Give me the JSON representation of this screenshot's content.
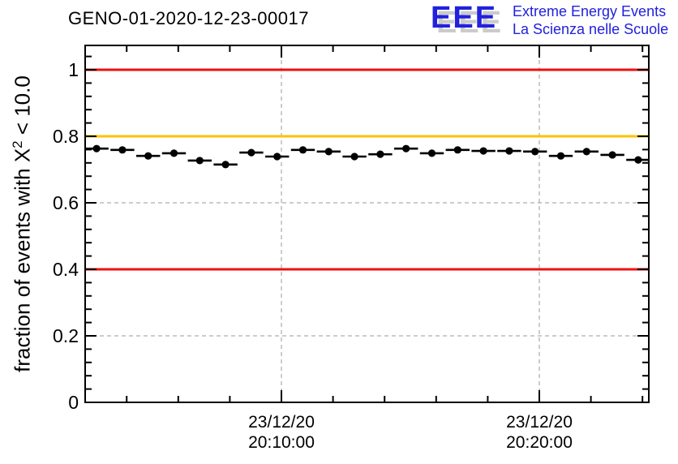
{
  "header": {
    "title": "GENO-01-2020-12-23-00017",
    "logo": {
      "monogram": "EEE",
      "line1": "Extreme Energy Events",
      "line2": "La Scienza nelle Scuole",
      "color": "#2121dd",
      "shadow_color": "#cbcbcb"
    }
  },
  "chart_data": {
    "type": "scatter",
    "title": "GENO-01-2020-12-23-00017",
    "ylabel_prefix": "fraction of events with X",
    "ylabel_sup": "2",
    "ylabel_suffix": " < 10.0",
    "xlabel": "",
    "ylim": [
      0,
      1.073
    ],
    "grid": "dashed-gray",
    "grid_color": "#9a9a9a",
    "frame_color": "#000000",
    "data_color": "#000000",
    "yticks": [
      {
        "value": 0,
        "label": "0"
      },
      {
        "value": 0.2,
        "label": "0.2"
      },
      {
        "value": 0.4,
        "label": "0.4"
      },
      {
        "value": 0.6,
        "label": "0.6"
      },
      {
        "value": 0.8,
        "label": "0.8"
      },
      {
        "value": 1,
        "label": "1"
      }
    ],
    "y_minor_step": 0.04,
    "x_major_ticks": [
      {
        "minutes": 0,
        "date": "23/12/20",
        "time": "20:10:00"
      },
      {
        "minutes": 10,
        "date": "23/12/20",
        "time": "20:20:00"
      }
    ],
    "x_minor_step_minutes": 2,
    "x_range_minutes": [
      -7.6,
      14.25
    ],
    "reference_lines": [
      {
        "value": 1.0,
        "color": "#ee1111"
      },
      {
        "value": 0.8,
        "color": "#fdc300"
      },
      {
        "value": 0.4,
        "color": "#ee1111"
      }
    ],
    "bin_width_minutes": 1,
    "points": [
      {
        "time": "20:02:50",
        "value": 0.763
      },
      {
        "time": "20:03:50",
        "value": 0.759
      },
      {
        "time": "20:04:50",
        "value": 0.741
      },
      {
        "time": "20:05:50",
        "value": 0.749
      },
      {
        "time": "20:06:50",
        "value": 0.727
      },
      {
        "time": "20:07:50",
        "value": 0.715
      },
      {
        "time": "20:08:50",
        "value": 0.751
      },
      {
        "time": "20:09:50",
        "value": 0.739
      },
      {
        "time": "20:10:50",
        "value": 0.759
      },
      {
        "time": "20:11:50",
        "value": 0.754
      },
      {
        "time": "20:12:50",
        "value": 0.739
      },
      {
        "time": "20:13:50",
        "value": 0.746
      },
      {
        "time": "20:14:50",
        "value": 0.763
      },
      {
        "time": "20:15:50",
        "value": 0.749
      },
      {
        "time": "20:16:50",
        "value": 0.759
      },
      {
        "time": "20:17:50",
        "value": 0.756
      },
      {
        "time": "20:18:50",
        "value": 0.756
      },
      {
        "time": "20:19:50",
        "value": 0.754
      },
      {
        "time": "20:20:50",
        "value": 0.741
      },
      {
        "time": "20:21:50",
        "value": 0.754
      },
      {
        "time": "20:22:50",
        "value": 0.744
      },
      {
        "time": "20:23:50",
        "value": 0.729
      }
    ]
  }
}
